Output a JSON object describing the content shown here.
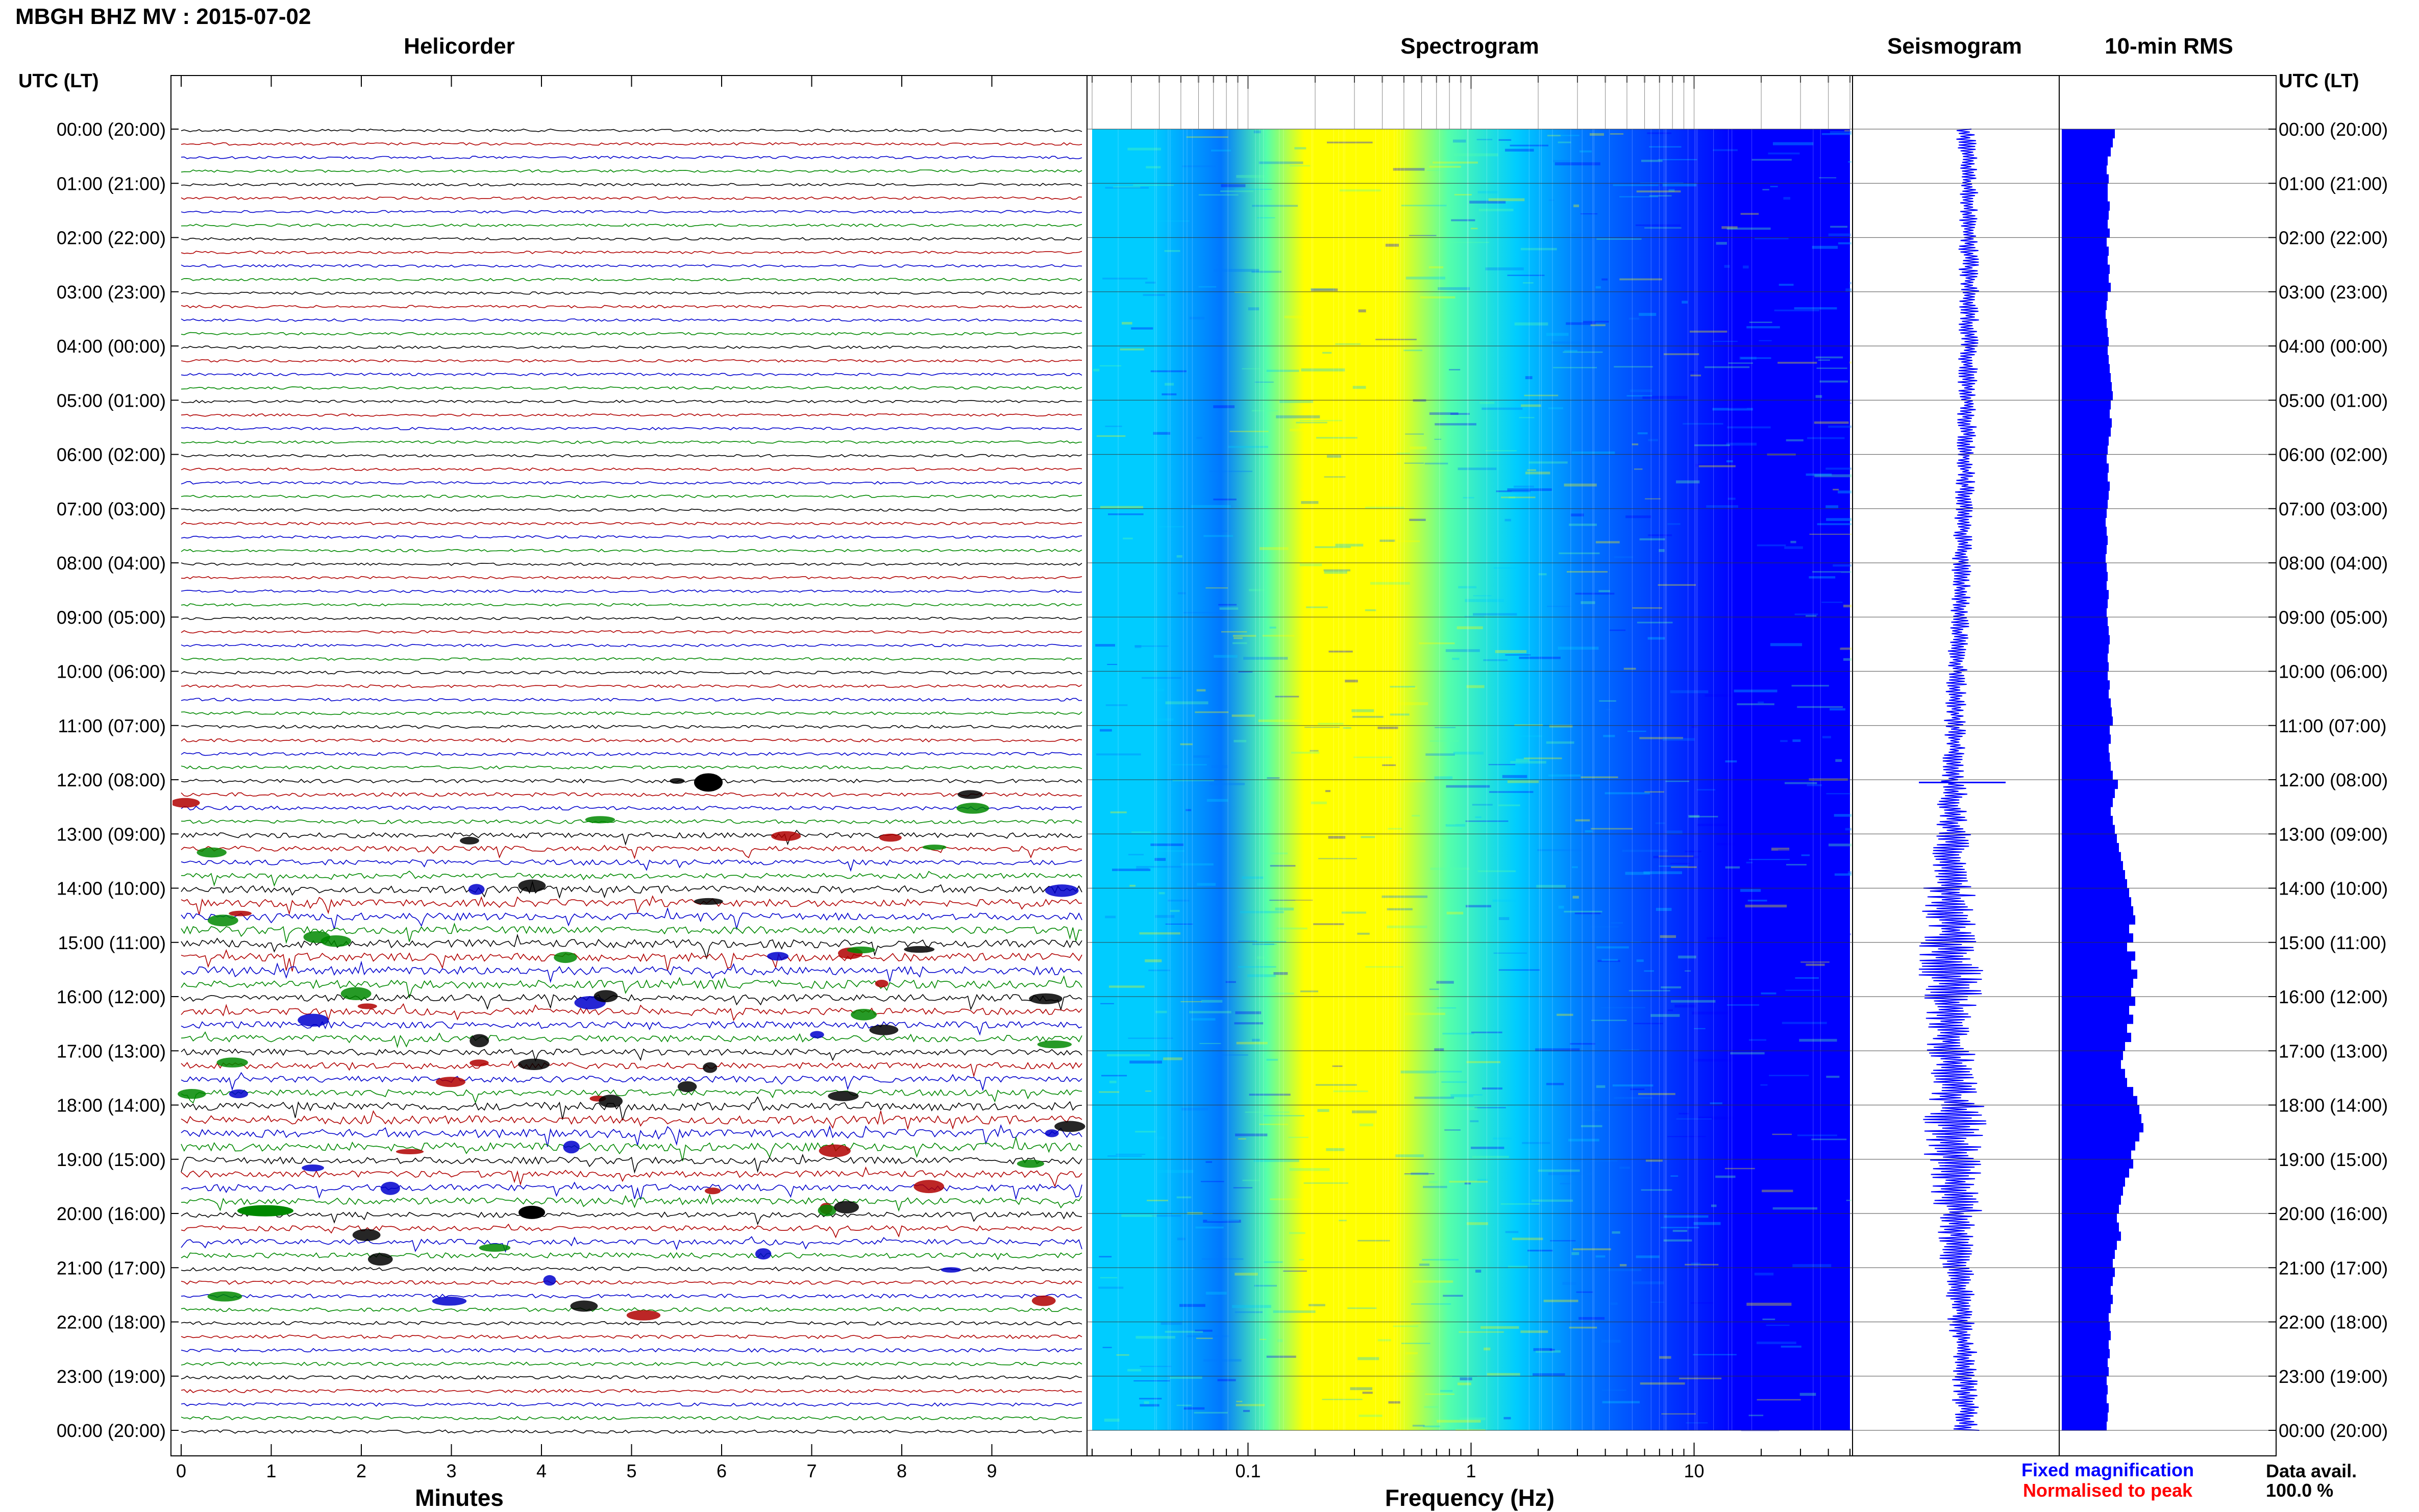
{
  "header": {
    "title": "MBGH BHZ MV : 2015-07-02"
  },
  "panels": {
    "helicorder": "Helicorder",
    "spectrogram": "Spectrogram",
    "seismogram": "Seismogram",
    "rms": "10-min RMS"
  },
  "left_axis_title": "UTC (LT)",
  "right_axis_title": "UTC (LT)",
  "time_labels": [
    "00:00 (20:00)",
    "01:00 (21:00)",
    "02:00 (22:00)",
    "03:00 (23:00)",
    "04:00 (00:00)",
    "05:00 (01:00)",
    "06:00 (02:00)",
    "07:00 (03:00)",
    "08:00 (04:00)",
    "09:00 (05:00)",
    "10:00 (06:00)",
    "11:00 (07:00)",
    "12:00 (08:00)",
    "13:00 (09:00)",
    "14:00 (10:00)",
    "15:00 (11:00)",
    "16:00 (12:00)",
    "17:00 (13:00)",
    "18:00 (14:00)",
    "19:00 (15:00)",
    "20:00 (16:00)",
    "21:00 (17:00)",
    "22:00 (18:00)",
    "23:00 (19:00)",
    "00:00 (20:00)"
  ],
  "legend": {
    "fixed": "Fixed magnification",
    "normalised": "Normalised to peak",
    "fixed_color": "#0000ff",
    "normalised_color": "#ff0000"
  },
  "availability": {
    "label": "Data avail.",
    "value": "100.0 %"
  },
  "chart_data": [
    {
      "type": "line",
      "name": "helicorder",
      "title": "Helicorder",
      "xlabel": "Minutes",
      "x_ticks": [
        "0",
        "1",
        "2",
        "3",
        "4",
        "5",
        "6",
        "7",
        "8",
        "9"
      ],
      "xlim": [
        0,
        10
      ],
      "trace_colors": [
        "#000000",
        "#b00000",
        "#0000cc",
        "#008800"
      ],
      "activity_by_hour": [
        1,
        1,
        1,
        1,
        1,
        1,
        1,
        1,
        1,
        1,
        1.1,
        1.2,
        1.5,
        2.0,
        2.8,
        3.2,
        2.6,
        2.4,
        3.2,
        2.6,
        2.0,
        1.5,
        1.4,
        1.3
      ]
    },
    {
      "type": "heatmap",
      "name": "spectrogram",
      "title": "Spectrogram",
      "xlabel": "Frequency (Hz)",
      "x_scale": "log",
      "xlim": [
        0.02,
        50
      ],
      "x_ticks": [
        "0.1",
        "1",
        "10"
      ],
      "colormap": [
        "#0000ff",
        "#0077ff",
        "#00ccff",
        "#55ffaa",
        "#ffff00"
      ]
    },
    {
      "type": "line",
      "name": "seismogram",
      "title": "Seismogram",
      "color": "#0000ff"
    },
    {
      "type": "bar",
      "name": "10-min RMS",
      "title": "10-min RMS",
      "color": "#0000ff",
      "values": [
        0.52,
        0.5,
        0.48,
        0.45,
        0.44,
        0.46,
        0.45,
        0.45,
        0.47,
        0.46,
        0.45,
        0.47,
        0.44,
        0.46,
        0.45,
        0.47,
        0.46,
        0.48,
        0.45,
        0.44,
        0.43,
        0.44,
        0.45,
        0.46,
        0.45,
        0.46,
        0.47,
        0.48,
        0.49,
        0.5,
        0.48,
        0.47,
        0.49,
        0.48,
        0.46,
        0.45,
        0.44,
        0.46,
        0.45,
        0.47,
        0.46,
        0.45,
        0.44,
        0.43,
        0.44,
        0.45,
        0.44,
        0.43,
        0.44,
        0.45,
        0.44,
        0.46,
        0.45,
        0.44,
        0.45,
        0.46,
        0.47,
        0.46,
        0.45,
        0.46,
        0.45,
        0.47,
        0.46,
        0.48,
        0.49,
        0.5,
        0.47,
        0.48,
        0.46,
        0.47,
        0.48,
        0.5,
        0.55,
        0.52,
        0.5,
        0.48,
        0.5,
        0.52,
        0.54,
        0.56,
        0.58,
        0.6,
        0.62,
        0.64,
        0.66,
        0.68,
        0.7,
        0.72,
        0.66,
        0.7,
        0.64,
        0.72,
        0.68,
        0.74,
        0.7,
        0.68,
        0.72,
        0.66,
        0.7,
        0.64,
        0.68,
        0.62,
        0.6,
        0.58,
        0.62,
        0.64,
        0.7,
        0.74,
        0.76,
        0.78,
        0.8,
        0.76,
        0.72,
        0.68,
        0.7,
        0.66,
        0.62,
        0.6,
        0.58,
        0.56,
        0.54,
        0.56,
        0.58,
        0.54,
        0.52,
        0.5,
        0.52,
        0.5,
        0.48,
        0.5,
        0.48,
        0.46,
        0.47,
        0.48,
        0.46,
        0.47,
        0.45,
        0.46,
        0.44,
        0.45,
        0.44,
        0.46,
        0.45,
        0.44
      ]
    }
  ]
}
